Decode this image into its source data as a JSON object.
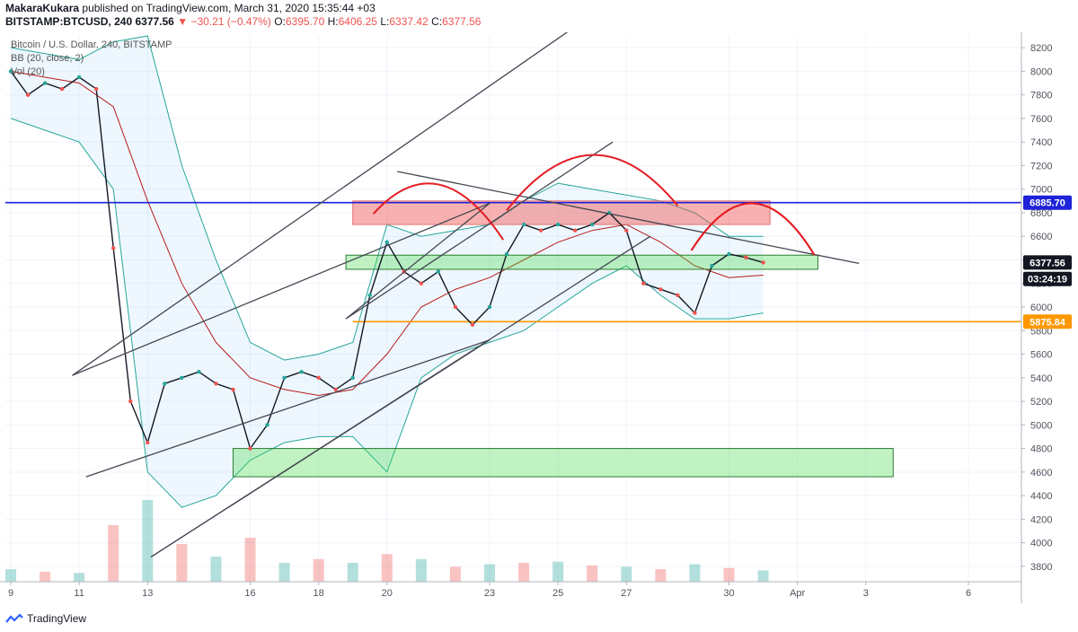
{
  "header": {
    "author": "MakaraKukara",
    "published_text": "published on TradingView.com, March 31, 2020 15:35:44 +03",
    "symbol": "BITSTAMP:BTCUSD, 240",
    "price": "6377.56",
    "change": "−30.21 (−0.47%)",
    "o_label": "O:",
    "o_value": "6395.70",
    "h_label": "H:",
    "h_value": "6406.25",
    "l_label": "L:",
    "l_value": "6337.42",
    "c_label": "C:",
    "c_value": "6377.56"
  },
  "legend": {
    "title": "Bitcoin / U.S. Dollar, 240, BITSTAMP",
    "bb": "BB (20, close, 2)",
    "vol": "Vol (20)"
  },
  "footer": {
    "brand": "TradingView"
  },
  "colors": {
    "up": "#26a69a",
    "down": "#ef5350",
    "blue_line": "#1e22d8",
    "orange_line": "#ff9800"
  },
  "chart_data": {
    "type": "candlestick",
    "y_ticks": [
      3800,
      4000,
      4200,
      4400,
      4600,
      4800,
      5000,
      5200,
      5400,
      5600,
      5800,
      6000,
      6200,
      6400,
      6600,
      6800,
      7000,
      7200,
      7400,
      7600,
      7800,
      8000,
      8200
    ],
    "ylim": [
      3700,
      8300
    ],
    "x_ticks": [
      {
        "label": "9",
        "day": 9
      },
      {
        "label": "11",
        "day": 11
      },
      {
        "label": "13",
        "day": 13
      },
      {
        "label": "16",
        "day": 16
      },
      {
        "label": "18",
        "day": 18
      },
      {
        "label": "20",
        "day": 20
      },
      {
        "label": "23",
        "day": 23
      },
      {
        "label": "25",
        "day": 25
      },
      {
        "label": "27",
        "day": 27
      },
      {
        "label": "30",
        "day": 30
      },
      {
        "label": "Apr",
        "day": 32
      },
      {
        "label": "3",
        "day": 34
      },
      {
        "label": "6",
        "day": 37
      }
    ],
    "price_labels": [
      {
        "text": "6885.70",
        "value": 6885.7,
        "color": "#1e22d8"
      },
      {
        "text": "6377.56",
        "value": 6377.56,
        "color": "#131722"
      },
      {
        "text": "03:24:19",
        "value": 6238,
        "color": "#131722"
      },
      {
        "text": "5875.84",
        "value": 5875.84,
        "color": "#ff9800"
      }
    ],
    "horizontal_lines": [
      {
        "value": 6885.7,
        "color": "#1e22d8"
      },
      {
        "value": 5875.84,
        "color": "#ff9800",
        "from_day": 19.0
      }
    ],
    "zones": [
      {
        "color": "red",
        "x": [
          19.0,
          31.2
        ],
        "y": [
          6700,
          6900
        ]
      },
      {
        "color": "green",
        "x": [
          18.8,
          32.6
        ],
        "y": [
          6320,
          6440
        ]
      },
      {
        "color": "green",
        "x": [
          15.5,
          34.8
        ],
        "y": [
          4560,
          4800
        ]
      }
    ],
    "trendlines": [
      [
        [
          10.8,
          5420
        ],
        [
          23.0,
          6880
        ]
      ],
      [
        [
          18.8,
          5900
        ],
        [
          23.0,
          6880
        ]
      ],
      [
        [
          18.8,
          5900
        ],
        [
          26.6,
          7400
        ]
      ],
      [
        [
          10.8,
          5420
        ],
        [
          26.6,
          8600
        ]
      ],
      [
        [
          11.2,
          4560
        ],
        [
          23.0,
          5720
        ]
      ],
      [
        [
          13.1,
          3880
        ],
        [
          23.0,
          5720
        ]
      ],
      [
        [
          13.1,
          3880
        ],
        [
          27.7,
          6600
        ]
      ],
      [
        [
          20.3,
          7150
        ],
        [
          33.8,
          6370
        ]
      ]
    ],
    "arcs": [
      {
        "start": [
          19.6,
          6790
        ],
        "end": [
          23.4,
          6570
        ],
        "peak": 7040
      },
      {
        "start": [
          23.5,
          6820
        ],
        "end": [
          28.5,
          6860
        ],
        "peak": 7290
      },
      {
        "start": [
          28.9,
          6480
        ],
        "end": [
          32.5,
          6440
        ],
        "peak": 6880
      },
      {
        "start": [
          28.9,
          6480
        ],
        "end": [
          32.5,
          6440
        ],
        "peak": 6880
      }
    ],
    "series": [
      {
        "name": "BTCUSD price",
        "days": [
          9.0,
          9.5,
          10.0,
          10.5,
          11.0,
          11.5,
          12.0,
          12.5,
          13.0,
          13.5,
          14.0,
          14.5,
          15.0,
          15.5,
          16.0,
          16.5,
          17.0,
          17.5,
          18.0,
          18.5,
          19.0,
          19.5,
          20.0,
          20.5,
          21.0,
          21.5,
          22.0,
          22.5,
          23.0,
          23.5,
          24.0,
          24.5,
          25.0,
          25.5,
          26.0,
          26.5,
          27.0,
          27.5,
          28.0,
          28.5,
          29.0,
          29.5,
          30.0,
          30.5,
          31.0
        ],
        "values": [
          8000,
          7800,
          7900,
          7850,
          7950,
          7850,
          6500,
          5200,
          4850,
          5350,
          5400,
          5450,
          5350,
          5300,
          4800,
          5000,
          5400,
          5450,
          5400,
          5300,
          5400,
          6100,
          6550,
          6300,
          6200,
          6300,
          6000,
          5850,
          6000,
          6450,
          6700,
          6650,
          6700,
          6650,
          6700,
          6800,
          6650,
          6200,
          6150,
          6100,
          5950,
          6350,
          6450,
          6420,
          6377.56
        ]
      },
      {
        "name": "BB basis",
        "days": [
          9,
          10,
          11,
          12,
          13,
          14,
          15,
          16,
          17,
          18,
          19,
          20,
          21,
          22,
          23,
          24,
          25,
          26,
          27,
          28,
          29,
          30,
          31
        ],
        "values": [
          8000,
          7950,
          7900,
          7700,
          6900,
          6200,
          5700,
          5400,
          5300,
          5250,
          5300,
          5600,
          6000,
          6150,
          6250,
          6400,
          6550,
          6650,
          6700,
          6550,
          6350,
          6250,
          6270
        ]
      },
      {
        "name": "BB upper",
        "days": [
          9,
          10,
          11,
          12,
          13,
          14,
          15,
          16,
          17,
          18,
          19,
          20,
          21,
          22,
          23,
          24,
          25,
          26,
          27,
          28,
          29,
          30,
          31
        ],
        "values": [
          8200,
          8150,
          8100,
          8250,
          8300,
          7200,
          6400,
          5700,
          5550,
          5600,
          5700,
          6700,
          6600,
          6650,
          6700,
          6900,
          7050,
          7000,
          6950,
          6900,
          6800,
          6600,
          6600
        ]
      },
      {
        "name": "BB lower",
        "days": [
          9,
          10,
          11,
          12,
          13,
          14,
          15,
          16,
          17,
          18,
          19,
          20,
          21,
          22,
          23,
          24,
          25,
          26,
          27,
          28,
          29,
          30,
          31
        ],
        "values": [
          7600,
          7500,
          7400,
          7000,
          4600,
          4300,
          4400,
          4700,
          4850,
          4900,
          4900,
          4600,
          5400,
          5600,
          5700,
          5800,
          6000,
          6200,
          6350,
          6100,
          5900,
          5900,
          5950
        ]
      },
      {
        "name": "Volume",
        "days": [
          9,
          10,
          11,
          12,
          13,
          14,
          15,
          16,
          17,
          18,
          19,
          20,
          21,
          22,
          23,
          24,
          25,
          26,
          27,
          28,
          29,
          30,
          31
        ],
        "values": [
          10,
          8,
          7,
          45,
          65,
          30,
          20,
          35,
          15,
          18,
          15,
          22,
          18,
          12,
          14,
          15,
          16,
          13,
          12,
          10,
          14,
          11,
          9
        ]
      }
    ]
  }
}
